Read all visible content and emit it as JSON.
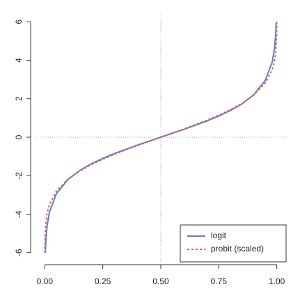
{
  "chart_data": {
    "type": "line",
    "series": [
      {
        "name": "logit",
        "color": "#5b7bd5",
        "dash": "solid",
        "x": [
          0.0025,
          0.005,
          0.01,
          0.02,
          0.05,
          0.1,
          0.15,
          0.2,
          0.25,
          0.3,
          0.4,
          0.5,
          0.6,
          0.7,
          0.75,
          0.8,
          0.85,
          0.9,
          0.95,
          0.98,
          0.99,
          0.995,
          0.9975
        ],
        "values": [
          -5.99,
          -5.29,
          -4.6,
          -3.89,
          -2.94,
          -2.2,
          -1.73,
          -1.39,
          -1.1,
          -0.85,
          -0.41,
          0,
          0.41,
          0.85,
          1.1,
          1.39,
          1.73,
          2.2,
          2.94,
          3.89,
          4.6,
          5.29,
          5.99
        ]
      },
      {
        "name": "probit (scaled)",
        "color": "#e8604c",
        "dash": "dotted",
        "x": [
          0.0002,
          0.0005,
          0.001,
          0.0025,
          0.005,
          0.01,
          0.02,
          0.05,
          0.1,
          0.15,
          0.2,
          0.25,
          0.3,
          0.4,
          0.5,
          0.6,
          0.7,
          0.75,
          0.8,
          0.85,
          0.9,
          0.95,
          0.98,
          0.99,
          0.995,
          0.9975,
          0.999,
          0.9995,
          0.9998
        ],
        "values": [
          -6.02,
          -5.59,
          -5.25,
          -4.77,
          -4.38,
          -3.95,
          -3.49,
          -2.8,
          -2.18,
          -1.76,
          -1.43,
          -1.15,
          -0.89,
          -0.43,
          0,
          0.43,
          0.89,
          1.15,
          1.43,
          1.76,
          2.18,
          2.8,
          3.49,
          3.95,
          4.38,
          4.77,
          5.25,
          5.59,
          6.02
        ]
      }
    ],
    "xlim": [
      -0.04,
      1.04
    ],
    "ylim": [
      -6.48,
      6.48
    ],
    "xticks": [
      {
        "value": 0,
        "label": "0.00"
      },
      {
        "value": 0.25,
        "label": "0.25"
      },
      {
        "value": 0.5,
        "label": "0.50"
      },
      {
        "value": 0.75,
        "label": "0.75"
      },
      {
        "value": 1,
        "label": "1.00"
      }
    ],
    "yticks": [
      -6,
      -4,
      -2,
      0,
      2,
      4,
      6
    ],
    "reference_lines": {
      "x": 0.5,
      "y": 0
    },
    "legend": "bottom-right"
  }
}
